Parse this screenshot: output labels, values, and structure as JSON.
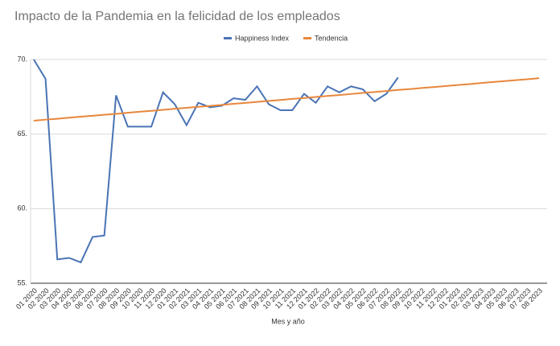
{
  "chart_data": {
    "type": "line",
    "title": "Impacto de la Pandemia en la felicidad de los empleados",
    "x_label": "Mes y año",
    "categories": [
      "01 2020",
      "02 2020",
      "03 2020",
      "04 2020",
      "05 2020",
      "06 2020",
      "07 2020",
      "08 2020",
      "09 2020",
      "10 2020",
      "11 2020",
      "12 2020",
      "01 2021",
      "02 2021",
      "03 2021",
      "04 2021",
      "05 2021",
      "06 2021",
      "07 2021",
      "08 2021",
      "09 2021",
      "10 2021",
      "11 2021",
      "12 2021",
      "01 2022",
      "02 2022",
      "03 2022",
      "04 2022",
      "05 2022",
      "06 2022",
      "07 2022",
      "08 2022",
      "09 2022",
      "10 2022",
      "11 2022",
      "12 2022",
      "01 2023",
      "02 2023",
      "03 2023",
      "04 2023",
      "05 2023",
      "06 2023",
      "07 2023",
      "08 2023"
    ],
    "series": [
      {
        "name": "Happiness Index",
        "color": "#4a74b5",
        "values": [
          70.0,
          68.7,
          56.6,
          56.7,
          56.4,
          58.1,
          58.2,
          67.6,
          65.5,
          65.5,
          65.5,
          67.8,
          67.0,
          65.6,
          67.1,
          66.8,
          66.9,
          67.4,
          67.3,
          68.2,
          67.0,
          66.6,
          66.6,
          67.7,
          67.1,
          68.2,
          67.8,
          68.2,
          68.0,
          67.2,
          67.7,
          68.8,
          null,
          null,
          null,
          null,
          null,
          null,
          null,
          null,
          null,
          null,
          null,
          null
        ]
      },
      {
        "name": "Tendencia",
        "color": "#e8873c",
        "values": [
          65.9,
          65.97,
          66.03,
          66.1,
          66.17,
          66.23,
          66.3,
          66.36,
          66.43,
          66.5,
          66.56,
          66.63,
          66.7,
          66.76,
          66.83,
          66.89,
          66.96,
          67.03,
          67.09,
          67.16,
          67.23,
          67.29,
          67.36,
          67.42,
          67.49,
          67.56,
          67.62,
          67.69,
          67.76,
          67.82,
          67.89,
          67.96,
          68.02,
          68.09,
          68.15,
          68.22,
          68.29,
          68.35,
          68.42,
          68.49,
          68.55,
          68.62,
          68.68,
          68.75
        ]
      }
    ],
    "ylim": [
      55,
      70
    ],
    "yticks": [
      {
        "value": 55,
        "label": "55."
      },
      {
        "value": 60,
        "label": "60."
      },
      {
        "value": 65,
        "label": "65."
      },
      {
        "value": 70,
        "label": "70."
      }
    ],
    "grid": true,
    "legend": "top"
  }
}
